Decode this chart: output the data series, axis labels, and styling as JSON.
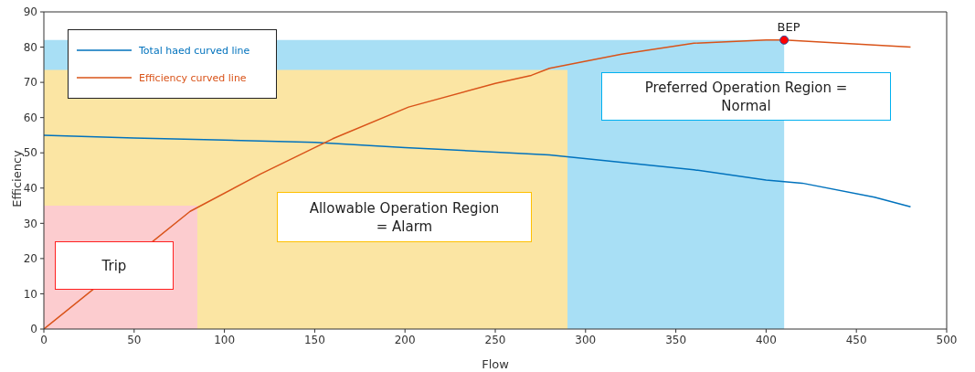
{
  "chart_data": {
    "type": "line",
    "xlabel": "Flow",
    "ylabel": "Efficiency",
    "xlim": [
      0,
      500
    ],
    "ylim": [
      0,
      90
    ],
    "xticks": [
      0,
      50,
      100,
      150,
      200,
      250,
      300,
      350,
      400,
      450,
      500
    ],
    "yticks": [
      0,
      10,
      20,
      30,
      40,
      50,
      60,
      70,
      80,
      90
    ],
    "grid": false,
    "legend": "top left",
    "marker": "none",
    "line_style": "solid",
    "series": [
      {
        "type": "area",
        "color": "#a8dff5",
        "x": [
          0,
          410
        ],
        "values": [
          82,
          82
        ]
      },
      {
        "type": "area",
        "color": "#fbe5a3",
        "x": [
          0,
          290
        ],
        "values": [
          73.5,
          73.5
        ]
      },
      {
        "type": "area",
        "color": "#fccccf",
        "x": [
          0,
          85
        ],
        "values": [
          35,
          35
        ]
      },
      {
        "name": "Total haed curved line",
        "color": "#0072bd",
        "x": [
          0,
          50,
          100,
          150,
          200,
          280,
          360,
          400,
          420,
          460,
          480
        ],
        "values": [
          55,
          54.2,
          53.6,
          53,
          51.5,
          49.4,
          45.2,
          42.3,
          41.4,
          37.4,
          34.7
        ]
      },
      {
        "name": "Efficiency curved line",
        "color": "#d95319",
        "x": [
          0,
          81,
          120,
          160,
          202,
          250,
          270,
          280,
          320,
          360,
          400,
          410,
          480
        ],
        "values": [
          0,
          33.4,
          44,
          54,
          63,
          69.7,
          72,
          74,
          78,
          81.1,
          82,
          82,
          80
        ]
      },
      {
        "type": "scatter",
        "color": "#ff0000",
        "marker": "circle",
        "x": [
          410
        ],
        "values": [
          82
        ]
      }
    ],
    "annotations": [
      "Trip",
      "Allowable Operation Region = Alarm",
      "Preferred Operation Region = Normal",
      "BEP"
    ]
  }
}
